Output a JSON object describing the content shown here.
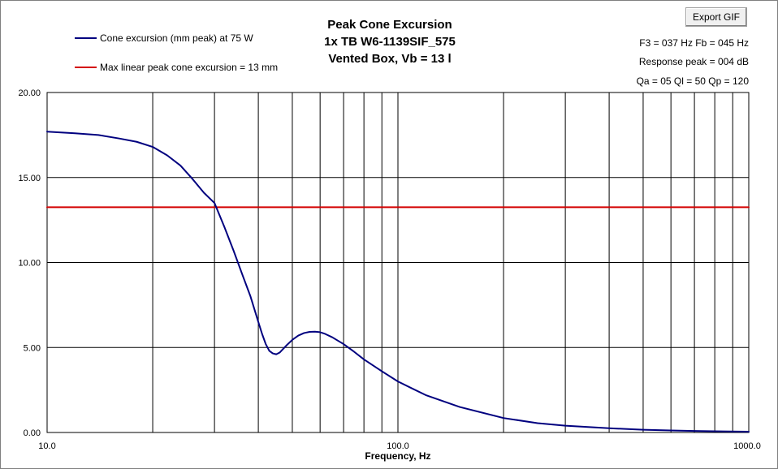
{
  "export_button": {
    "label": "Export GIF"
  },
  "titles": [
    "Peak Cone Excursion",
    "1x TB W6-1139SIF_575",
    "Vented Box, Vb = 13 l"
  ],
  "info_lines": [
    "F3 = 037 Hz  Fb = 045 Hz",
    "Response peak = 004 dB",
    "Qa = 05  Ql = 50  Qp = 120"
  ],
  "chart_data": {
    "type": "line",
    "xlabel": "Frequency, Hz",
    "ylabel": "",
    "x_scale": "log",
    "xlim": [
      10,
      1000
    ],
    "ylim": [
      0,
      20
    ],
    "grid": true,
    "legend_placement": "top-left",
    "x_tick_labels": [
      {
        "value": 10,
        "label": "10.0"
      },
      {
        "value": 100,
        "label": "100.0"
      },
      {
        "value": 1000,
        "label": "1000.0"
      }
    ],
    "y_tick_labels": [
      {
        "value": 0,
        "label": "0.00"
      },
      {
        "value": 5,
        "label": "5.00"
      },
      {
        "value": 10,
        "label": "10.00"
      },
      {
        "value": 15,
        "label": "15.00"
      },
      {
        "value": 20,
        "label": "20.00"
      }
    ],
    "series": [
      {
        "name": "Cone excursion (mm peak) at 75 W",
        "color": "#00007f",
        "x": [
          10,
          12,
          14,
          16,
          18,
          20,
          22,
          24,
          26,
          28,
          30,
          32,
          34,
          36,
          38,
          40,
          41,
          42,
          43,
          44,
          45,
          46,
          47,
          48,
          50,
          52,
          54,
          56,
          58,
          60,
          62,
          65,
          70,
          75,
          80,
          90,
          100,
          120,
          150,
          200,
          250,
          300,
          400,
          500,
          600,
          700,
          800,
          1000
        ],
        "y": [
          17.7,
          17.6,
          17.5,
          17.3,
          17.1,
          16.8,
          16.3,
          15.7,
          14.9,
          14.1,
          13.5,
          12.1,
          10.7,
          9.3,
          8.0,
          6.5,
          5.8,
          5.2,
          4.8,
          4.65,
          4.6,
          4.7,
          4.9,
          5.1,
          5.45,
          5.7,
          5.85,
          5.92,
          5.93,
          5.9,
          5.8,
          5.6,
          5.2,
          4.75,
          4.3,
          3.6,
          3.0,
          2.2,
          1.5,
          0.85,
          0.55,
          0.4,
          0.25,
          0.16,
          0.12,
          0.09,
          0.07,
          0.05
        ]
      },
      {
        "name": "Max linear peak cone excursion = 13 mm",
        "color": "#d40000",
        "x": [
          10,
          1000
        ],
        "y": [
          13.25,
          13.25
        ]
      }
    ]
  }
}
